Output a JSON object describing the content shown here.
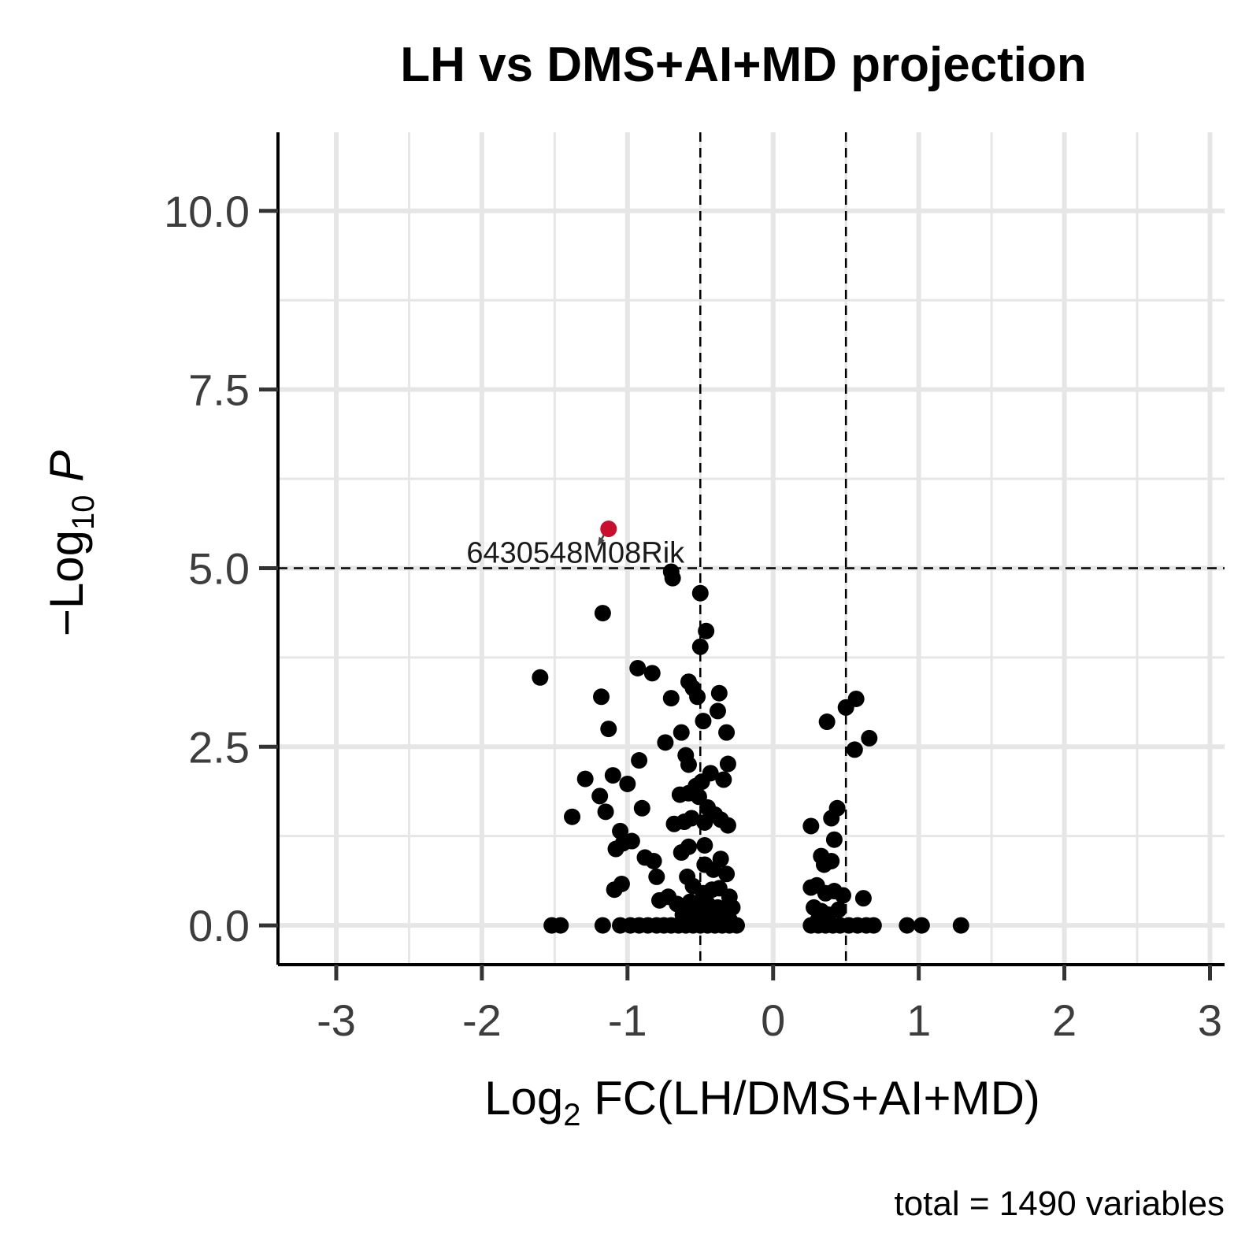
{
  "chart_data": {
    "type": "scatter",
    "title": "LH vs DMS+AI+MD projection",
    "xlabel": {
      "prefix": "Log",
      "sub": "2",
      "suffix": " FC(LH/DMS+AI+MD)"
    },
    "ylabel": {
      "prefix": "−Log",
      "sub": "10",
      "suffix": " P"
    },
    "caption": "total = 1490 variables",
    "xlim": [
      -3.4,
      3.1
    ],
    "ylim": [
      -0.55,
      11.1
    ],
    "x_ticks": [
      {
        "value": -3,
        "label": "-3"
      },
      {
        "value": -2,
        "label": "-2"
      },
      {
        "value": -1,
        "label": "-1"
      },
      {
        "value": 0,
        "label": "0"
      },
      {
        "value": 1,
        "label": "1"
      },
      {
        "value": 2,
        "label": "2"
      },
      {
        "value": 3,
        "label": "3"
      }
    ],
    "y_ticks": [
      {
        "value": 0,
        "label": "0.0"
      },
      {
        "value": 2.5,
        "label": "2.5"
      },
      {
        "value": 5,
        "label": "5.0"
      },
      {
        "value": 7.5,
        "label": "7.5"
      },
      {
        "value": 10,
        "label": "10.0"
      }
    ],
    "grid": true,
    "thresholds": {
      "log2fc": [
        -0.5,
        0.5
      ],
      "neglog10p": 5
    },
    "colors": {
      "ns": "#000000",
      "significant": "#c8102e",
      "threshold_line": "#000000",
      "grid": "#e6e6e6"
    },
    "highlighted": [
      {
        "x": -1.13,
        "y": 5.55,
        "label": "6430548M08Rik"
      }
    ],
    "points": [
      [
        -1.6,
        3.47
      ],
      [
        -1.17,
        4.37
      ],
      [
        -0.7,
        4.95
      ],
      [
        -0.69,
        4.86
      ],
      [
        -0.5,
        4.65
      ],
      [
        -0.46,
        4.12
      ],
      [
        -0.5,
        3.9
      ],
      [
        -1.18,
        3.2
      ],
      [
        -1.13,
        2.75
      ],
      [
        -0.93,
        3.6
      ],
      [
        -0.83,
        3.53
      ],
      [
        -0.58,
        3.41
      ],
      [
        -0.55,
        3.32
      ],
      [
        -0.52,
        3.2
      ],
      [
        -0.37,
        3.25
      ],
      [
        -0.7,
        3.18
      ],
      [
        -0.38,
        3.0
      ],
      [
        -0.48,
        2.86
      ],
      [
        -0.32,
        2.7
      ],
      [
        -0.63,
        2.7
      ],
      [
        -0.74,
        2.56
      ],
      [
        -0.6,
        2.38
      ],
      [
        -0.58,
        2.25
      ],
      [
        -0.92,
        2.31
      ],
      [
        -0.31,
        2.26
      ],
      [
        -0.43,
        2.13
      ],
      [
        -0.34,
        2.04
      ],
      [
        -0.49,
        2.01
      ],
      [
        -0.53,
        1.95
      ],
      [
        -1.29,
        2.05
      ],
      [
        -1.1,
        2.1
      ],
      [
        -1.0,
        1.98
      ],
      [
        -1.19,
        1.81
      ],
      [
        -0.64,
        1.83
      ],
      [
        -0.58,
        1.85
      ],
      [
        -0.51,
        1.8
      ],
      [
        -0.45,
        1.65
      ],
      [
        -0.4,
        1.55
      ],
      [
        -0.9,
        1.64
      ],
      [
        -1.15,
        1.59
      ],
      [
        -1.38,
        1.52
      ],
      [
        -0.56,
        1.5
      ],
      [
        -0.61,
        1.45
      ],
      [
        -0.68,
        1.42
      ],
      [
        -0.47,
        1.44
      ],
      [
        -0.36,
        1.48
      ],
      [
        -0.31,
        1.4
      ],
      [
        -1.05,
        1.32
      ],
      [
        -0.97,
        1.18
      ],
      [
        -1.03,
        1.15
      ],
      [
        -1.08,
        1.07
      ],
      [
        -0.63,
        1.02
      ],
      [
        -0.58,
        1.1
      ],
      [
        -0.47,
        1.12
      ],
      [
        -0.36,
        0.93
      ],
      [
        -0.88,
        0.95
      ],
      [
        -0.82,
        0.9
      ],
      [
        -0.8,
        0.68
      ],
      [
        -0.59,
        0.68
      ],
      [
        -0.47,
        0.85
      ],
      [
        -0.41,
        0.78
      ],
      [
        -0.32,
        0.72
      ],
      [
        -0.55,
        0.55
      ],
      [
        -0.48,
        0.45
      ],
      [
        -0.42,
        0.5
      ],
      [
        -0.37,
        0.52
      ],
      [
        -0.3,
        0.4
      ],
      [
        -1.04,
        0.58
      ],
      [
        -1.09,
        0.5
      ],
      [
        -0.72,
        0.4
      ],
      [
        -0.78,
        0.35
      ],
      [
        -0.66,
        0.3
      ],
      [
        -0.57,
        0.33
      ],
      [
        -0.5,
        0.28
      ],
      [
        -0.45,
        0.3
      ],
      [
        -0.38,
        0.25
      ],
      [
        -0.33,
        0.18
      ],
      [
        -0.62,
        0.15
      ],
      [
        -0.55,
        0.12
      ],
      [
        -0.49,
        0.15
      ],
      [
        -0.42,
        0.1
      ],
      [
        -0.36,
        0.12
      ],
      [
        -0.3,
        0.08
      ],
      [
        -0.28,
        0.25
      ],
      [
        -1.52,
        0.0
      ],
      [
        -1.46,
        0.0
      ],
      [
        -1.17,
        0.0
      ],
      [
        -1.05,
        0.0
      ],
      [
        -0.98,
        0.0
      ],
      [
        -0.92,
        0.0
      ],
      [
        -0.86,
        0.0
      ],
      [
        -0.8,
        0.0
      ],
      [
        -0.75,
        0.0
      ],
      [
        -0.7,
        0.0
      ],
      [
        -0.65,
        0.0
      ],
      [
        -0.6,
        0.0
      ],
      [
        -0.55,
        0.0
      ],
      [
        -0.5,
        0.0
      ],
      [
        -0.45,
        0.0
      ],
      [
        -0.4,
        0.0
      ],
      [
        -0.35,
        0.0
      ],
      [
        -0.3,
        0.0
      ],
      [
        -0.25,
        0.0
      ],
      [
        0.37,
        2.85
      ],
      [
        0.5,
        3.05
      ],
      [
        0.57,
        3.17
      ],
      [
        0.56,
        2.46
      ],
      [
        0.66,
        2.62
      ],
      [
        0.44,
        1.64
      ],
      [
        0.4,
        1.5
      ],
      [
        0.26,
        1.39
      ],
      [
        0.42,
        1.2
      ],
      [
        0.33,
        0.97
      ],
      [
        0.4,
        0.9
      ],
      [
        0.35,
        0.85
      ],
      [
        0.26,
        0.53
      ],
      [
        0.3,
        0.56
      ],
      [
        0.36,
        0.45
      ],
      [
        0.42,
        0.48
      ],
      [
        0.48,
        0.42
      ],
      [
        0.62,
        0.38
      ],
      [
        0.28,
        0.25
      ],
      [
        0.33,
        0.2
      ],
      [
        0.38,
        0.15
      ],
      [
        0.45,
        0.22
      ],
      [
        0.31,
        0.08
      ],
      [
        0.26,
        0.0
      ],
      [
        0.31,
        0.0
      ],
      [
        0.36,
        0.0
      ],
      [
        0.41,
        0.0
      ],
      [
        0.46,
        0.0
      ],
      [
        0.52,
        0.0
      ],
      [
        0.58,
        0.0
      ],
      [
        0.64,
        0.0
      ],
      [
        0.69,
        0.0
      ],
      [
        0.92,
        0.0
      ],
      [
        1.02,
        0.0
      ],
      [
        1.29,
        0.0
      ]
    ]
  }
}
